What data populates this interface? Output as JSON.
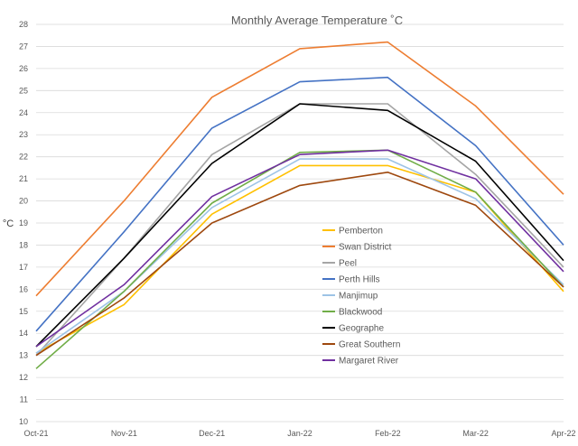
{
  "chart_data": {
    "type": "line",
    "title": "Monthly Average Temperature ˚C",
    "xlabel": "",
    "ylabel": "°C",
    "ylim": [
      10,
      28
    ],
    "ytick_step": 1,
    "grid": true,
    "legend_position": "center",
    "categories": [
      "Oct-21",
      "Nov-21",
      "Dec-21",
      "Jan-22",
      "Feb-22",
      "Mar-22",
      "Apr-22"
    ],
    "series": [
      {
        "name": "Pemberton",
        "color": "#FFC000",
        "values": [
          13.1,
          15.3,
          19.4,
          21.6,
          21.6,
          20.4,
          15.9
        ]
      },
      {
        "name": "Swan District",
        "color": "#ED7D31",
        "values": [
          15.7,
          20.0,
          24.7,
          26.9,
          27.2,
          24.3,
          20.3
        ]
      },
      {
        "name": "Peel",
        "color": "#A5A5A5",
        "values": [
          13.0,
          17.4,
          22.1,
          24.4,
          24.4,
          21.2,
          17.0
        ]
      },
      {
        "name": "Perth Hills",
        "color": "#4472C4",
        "values": [
          14.1,
          18.6,
          23.3,
          25.4,
          25.6,
          22.5,
          18.0
        ]
      },
      {
        "name": "Manjimup",
        "color": "#9DC3E6",
        "values": [
          13.1,
          15.9,
          19.7,
          21.9,
          21.9,
          20.1,
          16.2
        ]
      },
      {
        "name": "Blackwood",
        "color": "#70AD47",
        "values": [
          12.4,
          15.9,
          19.9,
          22.2,
          22.3,
          20.4,
          16.1
        ]
      },
      {
        "name": "Geographe",
        "color": "#000000",
        "values": [
          13.4,
          17.4,
          21.7,
          24.4,
          24.1,
          21.8,
          17.3
        ]
      },
      {
        "name": "Great Southern",
        "color": "#9E480E",
        "values": [
          13.0,
          15.6,
          19.0,
          20.7,
          21.3,
          19.8,
          16.1
        ]
      },
      {
        "name": "Margaret River",
        "color": "#7030A0",
        "values": [
          13.4,
          16.2,
          20.2,
          22.1,
          22.3,
          21.0,
          16.8
        ]
      }
    ]
  }
}
